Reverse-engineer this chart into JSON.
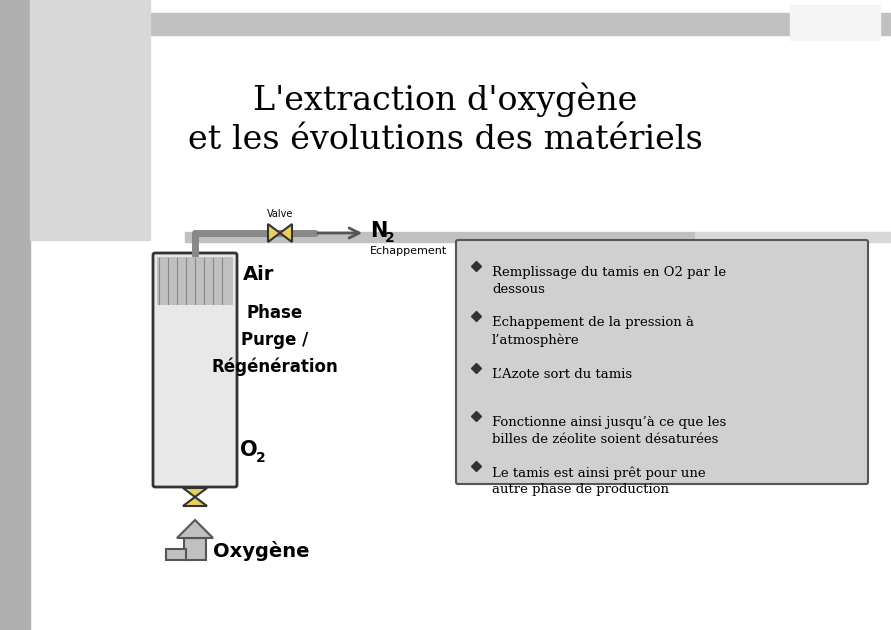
{
  "title_line1": "L'extraction d'oxygène",
  "title_line2": "et les évolutions des matériels",
  "bg_color": "#ffffff",
  "header_bar_color": "#c0c0c0",
  "left_panel_color": "#d3d3d3",
  "cylinder_fill": "#e8e8e8",
  "cylinder_top_fill": "#c0c0c0",
  "valve_color": "#e8d060",
  "valve_outline": "#333333",
  "arrow_color": "#c0c0c0",
  "arrow_outline": "#555555",
  "text_color": "#000000",
  "box_bg": "#d0d0d0",
  "box_border": "#555555",
  "bullet_color": "#333333",
  "bullet_items": [
    "Remplissage du tamis en O2 par le\ndessous",
    "Echappement de la pression à\nl’atmosphère",
    "L’Azote sort du tamis",
    "Fonctionne ainsi jusqu’à ce que les\nbilles de zéolite soient désaturées",
    "Le tamis est ainsi prêt pour une\nautre phase de production"
  ],
  "phase_text": "Phase\nPurge /\nRégénération",
  "valve_label": "Valve",
  "n2_label": "N",
  "n2_sub": "2",
  "echappement_label": "Echappement",
  "air_label": "Air",
  "o2_label": "O",
  "o2_sub": "2",
  "oxygene_label": "Oxygène"
}
